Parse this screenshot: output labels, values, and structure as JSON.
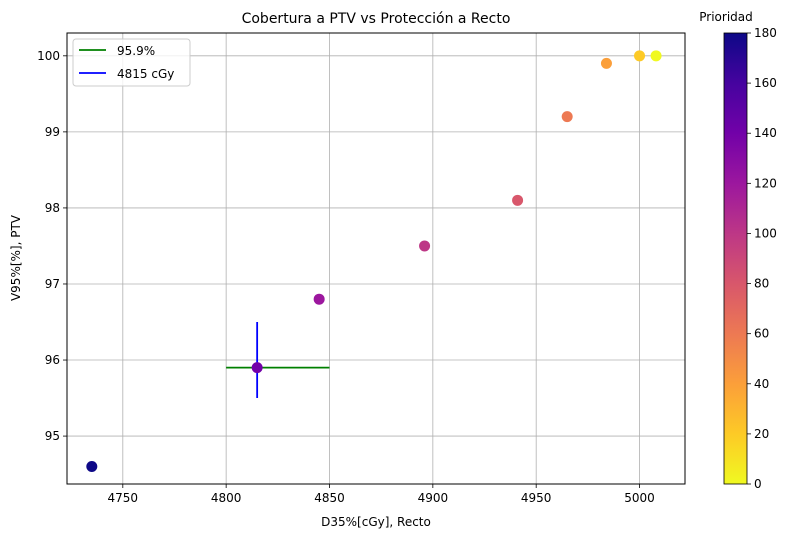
{
  "chart_data": {
    "type": "scatter",
    "title": "Cobertura a PTV vs Protección a Recto",
    "xlabel": "D35%[cGy], Recto",
    "ylabel": "V95%[%], PTV",
    "xlim": [
      4723,
      5022
    ],
    "ylim": [
      94.37,
      100.3
    ],
    "xticks": [
      4750,
      4800,
      4850,
      4900,
      4950,
      5000
    ],
    "yticks": [
      95,
      96,
      97,
      98,
      99,
      100
    ],
    "grid": true,
    "colormap": "plasma",
    "colorbar": {
      "label": "Prioridad",
      "range": [
        0,
        180
      ],
      "ticks": [
        0,
        20,
        40,
        60,
        80,
        100,
        120,
        140,
        160,
        180
      ]
    },
    "points": [
      {
        "x": 4735,
        "y": 94.6,
        "priority": 180
      },
      {
        "x": 4815,
        "y": 95.9,
        "priority": 140
      },
      {
        "x": 4845,
        "y": 96.8,
        "priority": 120
      },
      {
        "x": 4896,
        "y": 97.5,
        "priority": 100
      },
      {
        "x": 4941,
        "y": 98.1,
        "priority": 80
      },
      {
        "x": 4965,
        "y": 99.2,
        "priority": 60
      },
      {
        "x": 4984,
        "y": 99.9,
        "priority": 40
      },
      {
        "x": 5000,
        "y": 100.0,
        "priority": 20
      },
      {
        "x": 5008,
        "y": 100.0,
        "priority": 0
      }
    ],
    "reference_lines": [
      {
        "label": "95.9%",
        "orientation": "horizontal",
        "y": 95.9,
        "x_range": [
          4800,
          4850
        ],
        "color": "#008000"
      },
      {
        "label": "4815 cGy",
        "orientation": "vertical",
        "x": 4815,
        "y_range": [
          95.5,
          96.5
        ],
        "color": "#0000ff"
      }
    ],
    "legend": {
      "placement": "upper-left",
      "entries": [
        "95.9%",
        "4815 cGy"
      ]
    }
  }
}
